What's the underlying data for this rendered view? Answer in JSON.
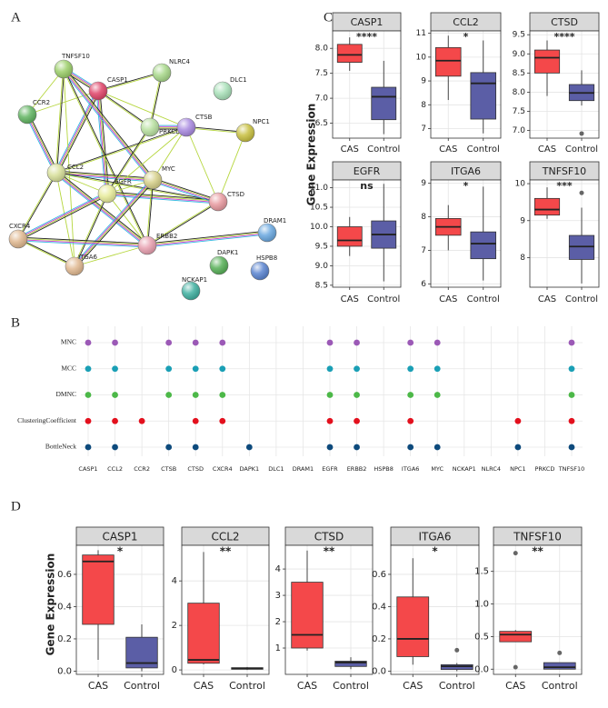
{
  "panel_labels": [
    "A",
    "B",
    "C",
    "D"
  ],
  "network": {
    "nodes": [
      "TNFSF10",
      "CASP1",
      "NLRC4",
      "DLC1",
      "CCR2",
      "PRKCD",
      "CTSB",
      "NPC1",
      "CCL2",
      "MYC",
      "EGFR",
      "CTSD",
      "DRAM1",
      "DAPK1",
      "HSPB8",
      "CXCR4",
      "ERBB2",
      "NCKAP1",
      "ITGA6"
    ]
  },
  "chart_data": [
    {
      "type": "dots",
      "categories": [
        "CASP1",
        "CCL2",
        "CCR2",
        "CTSB",
        "CTSD",
        "CXCR4",
        "DAPK1",
        "DLC1",
        "DRAM1",
        "EGFR",
        "ERBB2",
        "HSPB8",
        "ITGA6",
        "MYC",
        "NCKAP1",
        "NLRC4",
        "NPC1",
        "PRKCD",
        "TNFSF10"
      ],
      "grid": true,
      "series": [
        {
          "name": "MNC",
          "color": "#9b59b6",
          "values": [
            1,
            1,
            0,
            1,
            1,
            1,
            0,
            0,
            0,
            1,
            1,
            0,
            1,
            1,
            0,
            0,
            0,
            0,
            1
          ]
        },
        {
          "name": "MCC",
          "color": "#1a9fb5",
          "values": [
            1,
            1,
            0,
            1,
            1,
            1,
            0,
            0,
            0,
            1,
            1,
            0,
            1,
            1,
            0,
            0,
            0,
            0,
            1
          ]
        },
        {
          "name": "DMNC",
          "color": "#4cb848",
          "values": [
            1,
            1,
            0,
            1,
            1,
            1,
            0,
            0,
            0,
            1,
            1,
            0,
            1,
            1,
            0,
            0,
            0,
            0,
            1
          ]
        },
        {
          "name": "ClusteringCoefficient",
          "color": "#e3101d",
          "values": [
            1,
            1,
            1,
            0,
            1,
            1,
            0,
            0,
            0,
            1,
            1,
            0,
            1,
            0,
            0,
            0,
            1,
            0,
            1
          ]
        },
        {
          "name": "BottleNeck",
          "color": "#0d4a7c",
          "values": [
            1,
            1,
            0,
            1,
            1,
            0,
            1,
            0,
            0,
            1,
            1,
            0,
            1,
            1,
            0,
            0,
            1,
            0,
            1
          ]
        }
      ]
    },
    {
      "type": "box",
      "y_label": "Gene Expression",
      "categories": [
        "CAS",
        "Control"
      ],
      "colors": [
        "#f4484a",
        "#5b5ea6"
      ],
      "grid": true,
      "panels": [
        {
          "title": "CASP1",
          "significance": "****",
          "ylim": [
            6.2,
            8.35
          ],
          "yticks": [
            6.5,
            {
              "value": 7,
              "label": "7.0"
            },
            7.5,
            {
              "value": 8,
              "label": "8.0"
            }
          ],
          "boxes": [
            {
              "min": 7.55,
              "q1": 7.72,
              "median": 7.87,
              "q3": 8.08,
              "max": 8.22
            },
            {
              "min": 6.28,
              "q1": 6.57,
              "median": 7.03,
              "q3": 7.22,
              "max": 7.75
            }
          ]
        },
        {
          "title": "CCL2",
          "significance": "*",
          "ylim": [
            6.6,
            11.1
          ],
          "yticks": [
            7,
            8,
            9,
            10,
            11
          ],
          "boxes": [
            {
              "min": 8.2,
              "q1": 9.2,
              "median": 9.85,
              "q3": 10.4,
              "max": 10.9
            },
            {
              "min": 6.8,
              "q1": 7.4,
              "median": 8.9,
              "q3": 9.35,
              "max": 10.7
            }
          ]
        },
        {
          "title": "CTSD",
          "significance": "****",
          "ylim": [
            6.8,
            9.6
          ],
          "yticks": [
            {
              "value": 7,
              "label": "7.0"
            },
            7.5,
            {
              "value": 8,
              "label": "8.0"
            },
            8.5,
            {
              "value": 9,
              "label": "9.0"
            },
            9.5
          ],
          "boxes": [
            {
              "min": 7.9,
              "q1": 8.5,
              "median": 8.9,
              "q3": 9.1,
              "max": 9.35
            },
            {
              "min": 7.65,
              "q1": 7.78,
              "median": 7.98,
              "q3": 8.2,
              "max": 8.57,
              "outliers": [
                6.92
              ]
            }
          ]
        },
        {
          "title": "EGFR",
          "significance": "ns",
          "ylim": [
            8.45,
            11.2
          ],
          "yticks": [
            8.5,
            {
              "value": 9,
              "label": "9.0"
            },
            9.5,
            {
              "value": 10,
              "label": "10.0"
            },
            10.5,
            {
              "value": 11,
              "label": "11.0"
            }
          ],
          "boxes": [
            {
              "min": 9.25,
              "q1": 9.5,
              "median": 9.65,
              "q3": 10.0,
              "max": 10.25
            },
            {
              "min": 8.6,
              "q1": 9.45,
              "median": 9.8,
              "q3": 10.15,
              "max": 11.1
            }
          ]
        },
        {
          "title": "ITGA6",
          "significance": "*",
          "ylim": [
            5.9,
            9.1
          ],
          "yticks": [
            6,
            7,
            8,
            9
          ],
          "boxes": [
            {
              "min": 7.0,
              "q1": 7.45,
              "median": 7.7,
              "q3": 7.95,
              "max": 8.35
            },
            {
              "min": 6.1,
              "q1": 6.75,
              "median": 7.2,
              "q3": 7.55,
              "max": 8.9
            }
          ]
        },
        {
          "title": "TNFSF10",
          "significance": "***",
          "ylim": [
            7.2,
            10.1
          ],
          "yticks": [
            8,
            9,
            10
          ],
          "boxes": [
            {
              "min": 9.05,
              "q1": 9.15,
              "median": 9.3,
              "q3": 9.6,
              "max": 9.9
            },
            {
              "min": 7.3,
              "q1": 7.95,
              "median": 8.3,
              "q3": 8.6,
              "max": 9.35,
              "outliers": [
                9.75
              ]
            }
          ]
        }
      ]
    },
    {
      "type": "box",
      "y_label": "Gene Expression",
      "categories": [
        "CAS",
        "Control"
      ],
      "colors": [
        "#f4484a",
        "#5b5ea6"
      ],
      "grid": true,
      "panels": [
        {
          "title": "CASP1",
          "significance": "*",
          "ylim": [
            -0.02,
            0.78
          ],
          "yticks": [
            {
              "value": 0,
              "label": "0.0"
            },
            0.2,
            0.4,
            0.6
          ],
          "boxes": [
            {
              "min": 0.07,
              "q1": 0.29,
              "median": 0.68,
              "q3": 0.72,
              "max": 0.75
            },
            {
              "min": 0.0,
              "q1": 0.02,
              "median": 0.05,
              "q3": 0.21,
              "max": 0.29
            }
          ]
        },
        {
          "title": "CCL2",
          "significance": "**",
          "ylim": [
            -0.2,
            5.6
          ],
          "yticks": [
            0,
            2,
            4
          ],
          "boxes": [
            {
              "min": 0.25,
              "q1": 0.3,
              "median": 0.45,
              "q3": 3.0,
              "max": 5.3
            },
            {
              "min": 0.0,
              "q1": 0.03,
              "median": 0.07,
              "q3": 0.1,
              "max": 0.13
            }
          ]
        },
        {
          "title": "CTSD",
          "significance": "**",
          "ylim": [
            0,
            4.9
          ],
          "yticks": [
            1,
            2,
            3,
            4
          ],
          "boxes": [
            {
              "min": 0.9,
              "q1": 1.0,
              "median": 1.5,
              "q3": 3.5,
              "max": 4.7
            },
            {
              "min": 0.2,
              "q1": 0.3,
              "median": 0.45,
              "q3": 0.5,
              "max": 0.65
            }
          ]
        },
        {
          "title": "ITGA6",
          "significance": "*",
          "ylim": [
            -0.02,
            0.78
          ],
          "yticks": [
            {
              "value": 0,
              "label": "0.0"
            },
            0.2,
            0.4,
            0.6
          ],
          "boxes": [
            {
              "min": 0.04,
              "q1": 0.09,
              "median": 0.2,
              "q3": 0.46,
              "max": 0.7
            },
            {
              "min": 0.0,
              "q1": 0.01,
              "median": 0.03,
              "q3": 0.04,
              "max": 0.05,
              "outliers": [
                0.13
              ]
            }
          ]
        },
        {
          "title": "TNFSF10",
          "significance": "**",
          "ylim": [
            -0.08,
            1.9
          ],
          "yticks": [
            {
              "value": 0,
              "label": "0.0"
            },
            0.5,
            {
              "value": 1,
              "label": "1.0"
            },
            1.5
          ],
          "boxes": [
            {
              "min": 0.42,
              "q1": 0.42,
              "median": 0.53,
              "q3": 0.58,
              "max": 0.6,
              "outliers": [
                0.03,
                1.78
              ]
            },
            {
              "min": 0.0,
              "q1": 0.0,
              "median": 0.03,
              "q3": 0.1,
              "max": 0.1,
              "outliers": [
                0.25
              ]
            }
          ]
        }
      ]
    }
  ]
}
